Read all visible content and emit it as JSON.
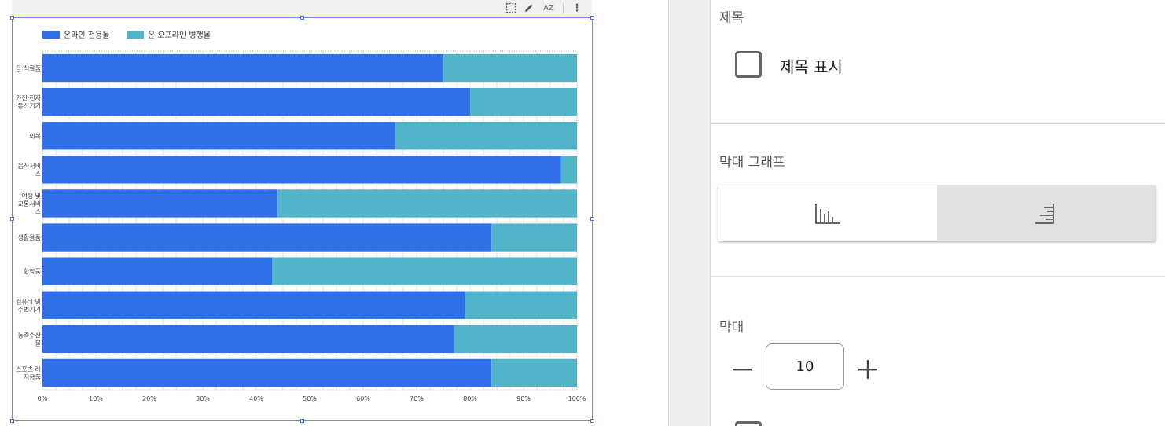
{
  "colors": {
    "series_online": "#2f6fe8",
    "series_mixed": "#52b4c8",
    "selection": "#4a76e0"
  },
  "toolbar": {
    "icons": [
      "select-icon",
      "pencil-icon",
      "sort-az-icon",
      "more-vert-icon"
    ],
    "sort_label": "AZ",
    "more_glyph": "⋮"
  },
  "chart_data": {
    "type": "bar",
    "orientation": "horizontal",
    "stacked": "percent",
    "legend_position": "top-left",
    "categories": [
      [
        "음·식료품"
      ],
      [
        "가전·전자",
        "·통신기기"
      ],
      [
        "의복"
      ],
      [
        "음식서비",
        "스"
      ],
      [
        "여행 및",
        "교통서비",
        "스"
      ],
      [
        "생활용품"
      ],
      [
        "화장품"
      ],
      [
        "컴퓨터 및",
        "주변기기"
      ],
      [
        "농축수산",
        "물"
      ],
      [
        "스포츠·레",
        "저용품"
      ]
    ],
    "series": [
      {
        "name": "온라인 전용몰",
        "color": "#2f6fe8",
        "values": [
          75,
          80,
          66,
          97,
          44,
          84,
          43,
          79,
          77,
          84
        ]
      },
      {
        "name": "온·오프라인 병행몰",
        "color": "#52b4c8",
        "values": [
          25,
          20,
          34,
          3,
          56,
          16,
          57,
          21,
          23,
          16
        ]
      }
    ],
    "x_ticks": [
      "0%",
      "10%",
      "20%",
      "30%",
      "40%",
      "50%",
      "60%",
      "70%",
      "80%",
      "90%",
      "100%"
    ],
    "xlim": [
      0,
      100
    ],
    "grid": true
  },
  "panel": {
    "title_section": {
      "heading": "제목",
      "checkbox_label": "제목 표시",
      "checked": false
    },
    "bar_chart_section": {
      "heading": "막대 그래프",
      "options": [
        {
          "icon": "vertical-bars-icon",
          "selected": false
        },
        {
          "icon": "horizontal-bars-icon",
          "selected": true
        }
      ]
    },
    "bars_section": {
      "heading": "막대",
      "value": "10"
    }
  }
}
